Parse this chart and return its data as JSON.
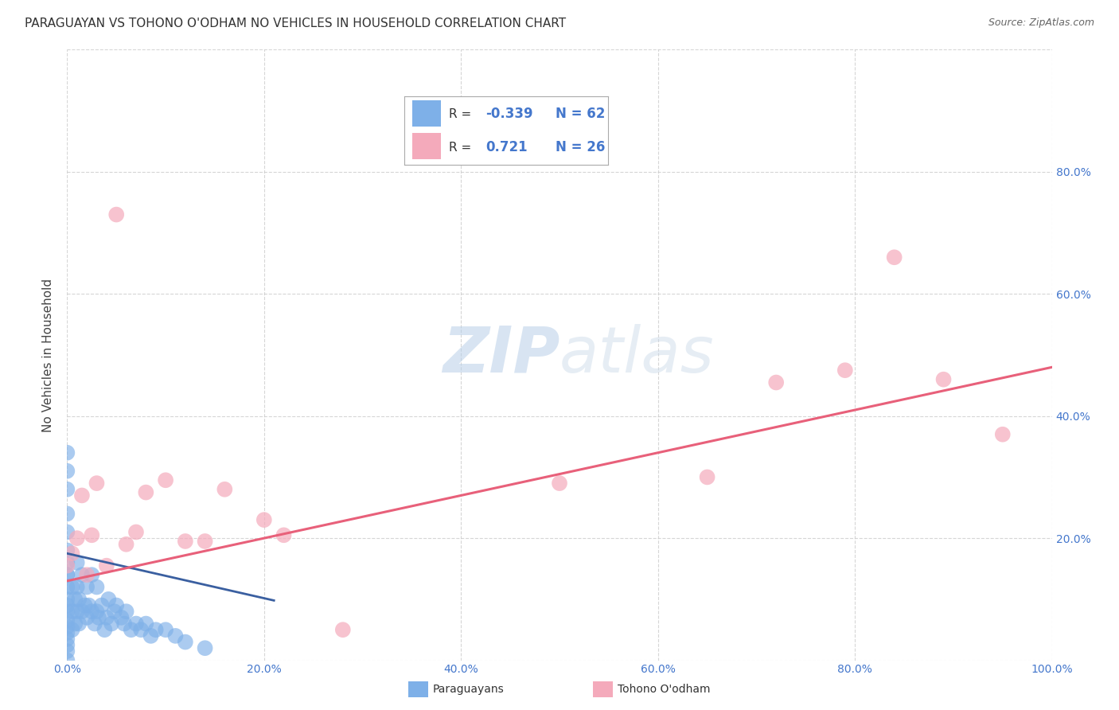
{
  "title": "PARAGUAYAN VS TOHONO O'ODHAM NO VEHICLES IN HOUSEHOLD CORRELATION CHART",
  "source": "Source: ZipAtlas.com",
  "ylabel": "No Vehicles in Household",
  "xlim": [
    0,
    1.0
  ],
  "ylim": [
    0,
    1.0
  ],
  "xticks": [
    0.0,
    0.2,
    0.4,
    0.6,
    0.8,
    1.0
  ],
  "yticks": [
    0.0,
    0.2,
    0.4,
    0.6,
    0.8,
    1.0
  ],
  "xtick_labels": [
    "0.0%",
    "20.0%",
    "40.0%",
    "60.0%",
    "80.0%",
    "100.0%"
  ],
  "ytick_labels_right": [
    "20.0%",
    "40.0%",
    "60.0%",
    "80.0%"
  ],
  "background_color": "#ffffff",
  "grid_color": "#cccccc",
  "paraguayan_color": "#7EB0E8",
  "tohono_color": "#F4AABB",
  "paraguayan_line_color": "#3a5fa0",
  "tohono_line_color": "#e8607a",
  "legend_R_paraguayan": "-0.339",
  "legend_N_paraguayan": "62",
  "legend_R_tohono": "0.721",
  "legend_N_tohono": "26",
  "paraguayan_x": [
    0.0,
    0.0,
    0.0,
    0.0,
    0.0,
    0.0,
    0.0,
    0.0,
    0.0,
    0.0,
    0.0,
    0.0,
    0.0,
    0.0,
    0.0,
    0.0,
    0.0,
    0.0,
    0.0,
    0.0,
    0.005,
    0.005,
    0.005,
    0.008,
    0.008,
    0.01,
    0.01,
    0.01,
    0.012,
    0.012,
    0.015,
    0.015,
    0.018,
    0.02,
    0.02,
    0.022,
    0.025,
    0.025,
    0.028,
    0.03,
    0.03,
    0.032,
    0.035,
    0.038,
    0.04,
    0.042,
    0.045,
    0.048,
    0.05,
    0.055,
    0.058,
    0.06,
    0.065,
    0.07,
    0.075,
    0.08,
    0.085,
    0.09,
    0.1,
    0.11,
    0.12,
    0.14
  ],
  "paraguayan_y": [
    0.0,
    0.015,
    0.025,
    0.035,
    0.045,
    0.055,
    0.065,
    0.08,
    0.1,
    0.12,
    0.14,
    0.16,
    0.18,
    0.21,
    0.24,
    0.28,
    0.31,
    0.34,
    0.14,
    0.09,
    0.05,
    0.08,
    0.12,
    0.06,
    0.1,
    0.08,
    0.12,
    0.16,
    0.06,
    0.1,
    0.08,
    0.14,
    0.09,
    0.07,
    0.12,
    0.09,
    0.08,
    0.14,
    0.06,
    0.08,
    0.12,
    0.07,
    0.09,
    0.05,
    0.07,
    0.1,
    0.06,
    0.08,
    0.09,
    0.07,
    0.06,
    0.08,
    0.05,
    0.06,
    0.05,
    0.06,
    0.04,
    0.05,
    0.05,
    0.04,
    0.03,
    0.02
  ],
  "tohono_x": [
    0.0,
    0.005,
    0.01,
    0.015,
    0.02,
    0.025,
    0.03,
    0.04,
    0.05,
    0.06,
    0.07,
    0.08,
    0.1,
    0.12,
    0.14,
    0.16,
    0.2,
    0.22,
    0.28,
    0.5,
    0.65,
    0.72,
    0.79,
    0.84,
    0.89,
    0.95
  ],
  "tohono_y": [
    0.155,
    0.175,
    0.2,
    0.27,
    0.14,
    0.205,
    0.29,
    0.155,
    0.73,
    0.19,
    0.21,
    0.275,
    0.295,
    0.195,
    0.195,
    0.28,
    0.23,
    0.205,
    0.05,
    0.29,
    0.3,
    0.455,
    0.475,
    0.66,
    0.46,
    0.37
  ],
  "paraguayan_trend_x": [
    0.0,
    0.21
  ],
  "paraguayan_trend_y": [
    0.175,
    0.098
  ],
  "tohono_trend_x": [
    0.0,
    1.0
  ],
  "tohono_trend_y": [
    0.13,
    0.48
  ]
}
